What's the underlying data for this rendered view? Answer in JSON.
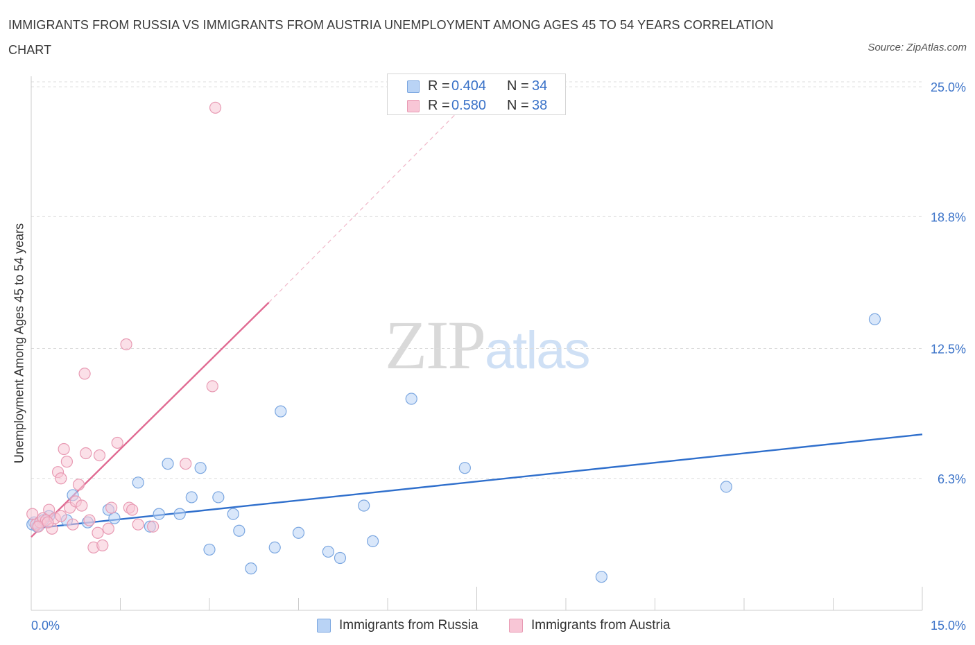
{
  "title": "IMMIGRANTS FROM RUSSIA VS IMMIGRANTS FROM AUSTRIA UNEMPLOYMENT AMONG AGES 45 TO 54 YEARS CORRELATION CHART",
  "source": "Source: ZipAtlas.com",
  "watermark": {
    "zip": "ZIP",
    "atlas": "atlas"
  },
  "colors": {
    "russia_fill": "#b9d3f5",
    "russia_stroke": "#7aa6e0",
    "russia_line": "#2f6fcc",
    "austria_fill": "#f8c6d6",
    "austria_stroke": "#e89ab3",
    "austria_line": "#e06a92",
    "tick_label": "#3a72c8",
    "grid": "#dcdcdc"
  },
  "legend": {
    "russia": {
      "r_label": "R =",
      "r_value": "0.404",
      "n_label": "N =",
      "n_value": "34"
    },
    "austria": {
      "r_label": "R =",
      "r_value": "0.580",
      "n_label": "N =",
      "n_value": "38"
    }
  },
  "chart_data": {
    "type": "scatter",
    "title": "IMMIGRANTS FROM RUSSIA VS IMMIGRANTS FROM AUSTRIA UNEMPLOYMENT AMONG AGES 45 TO 54 YEARS CORRELATION CHART",
    "xlabel": "",
    "ylabel": "Unemployment Among Ages 45 to 54 years",
    "xlim": [
      0,
      15
    ],
    "ylim": [
      0,
      25.5
    ],
    "x_tick_labels": [
      "0.0%",
      "15.0%"
    ],
    "y_ticks": [
      6.3,
      12.5,
      18.8,
      25.0
    ],
    "y_tick_labels": [
      "6.3%",
      "12.5%",
      "18.8%",
      "25.0%"
    ],
    "grid": true,
    "legend_position": "top-center",
    "series": [
      {
        "name": "Immigrants from Russia",
        "color": "#b9d3f5",
        "points": [
          [
            0.05,
            4.2
          ],
          [
            0.1,
            4.0
          ],
          [
            0.2,
            4.3
          ],
          [
            0.3,
            4.5
          ],
          [
            0.6,
            4.3
          ],
          [
            0.7,
            5.5
          ],
          [
            0.95,
            4.2
          ],
          [
            1.3,
            4.8
          ],
          [
            1.4,
            4.4
          ],
          [
            1.8,
            6.1
          ],
          [
            2.0,
            4.0
          ],
          [
            2.15,
            4.6
          ],
          [
            2.3,
            7.0
          ],
          [
            2.5,
            4.6
          ],
          [
            2.7,
            5.4
          ],
          [
            2.85,
            6.8
          ],
          [
            3.0,
            2.9
          ],
          [
            3.15,
            5.4
          ],
          [
            3.4,
            4.6
          ],
          [
            3.5,
            3.8
          ],
          [
            3.7,
            2.0
          ],
          [
            4.1,
            3.0
          ],
          [
            4.2,
            9.5
          ],
          [
            4.5,
            3.7
          ],
          [
            5.0,
            2.8
          ],
          [
            5.2,
            2.5
          ],
          [
            5.6,
            5.0
          ],
          [
            5.75,
            3.3
          ],
          [
            6.4,
            10.1
          ],
          [
            7.3,
            6.8
          ],
          [
            9.6,
            1.6
          ],
          [
            11.7,
            5.9
          ],
          [
            14.2,
            13.9
          ],
          [
            0.02,
            4.1
          ]
        ]
      },
      {
        "name": "Immigrants from Austria",
        "color": "#f8c6d6",
        "points": [
          [
            0.02,
            4.6
          ],
          [
            0.08,
            4.1
          ],
          [
            0.15,
            4.2
          ],
          [
            0.2,
            4.4
          ],
          [
            0.25,
            4.3
          ],
          [
            0.3,
            4.8
          ],
          [
            0.35,
            3.9
          ],
          [
            0.4,
            4.4
          ],
          [
            0.45,
            6.6
          ],
          [
            0.5,
            6.3
          ],
          [
            0.55,
            7.7
          ],
          [
            0.6,
            7.1
          ],
          [
            0.65,
            4.9
          ],
          [
            0.7,
            4.1
          ],
          [
            0.75,
            5.2
          ],
          [
            0.8,
            6.0
          ],
          [
            0.85,
            5.0
          ],
          [
            0.9,
            11.3
          ],
          [
            0.92,
            7.5
          ],
          [
            0.98,
            4.3
          ],
          [
            1.05,
            3.0
          ],
          [
            1.12,
            3.7
          ],
          [
            1.15,
            7.4
          ],
          [
            1.2,
            3.1
          ],
          [
            1.3,
            3.9
          ],
          [
            1.35,
            4.9
          ],
          [
            1.45,
            8.0
          ],
          [
            1.6,
            12.7
          ],
          [
            1.65,
            4.9
          ],
          [
            1.7,
            4.8
          ],
          [
            1.8,
            4.1
          ],
          [
            2.05,
            4.0
          ],
          [
            2.6,
            7.0
          ],
          [
            3.05,
            10.7
          ],
          [
            3.1,
            24.0
          ],
          [
            0.12,
            4.0
          ],
          [
            0.28,
            4.2
          ],
          [
            0.5,
            4.5
          ]
        ]
      }
    ],
    "trendlines": [
      {
        "series": "Immigrants from Russia",
        "from": [
          0,
          3.9
        ],
        "to": [
          15,
          8.4
        ],
        "style": "solid"
      },
      {
        "series": "Immigrants from Austria",
        "from": [
          0,
          3.5
        ],
        "to": [
          4.0,
          14.7
        ],
        "style": "solid"
      },
      {
        "series": "Immigrants from Austria",
        "from": [
          4.0,
          14.7
        ],
        "to": [
          7.6,
          25.0
        ],
        "style": "dashed"
      }
    ]
  },
  "bottom_legend": {
    "russia": "Immigrants from Russia",
    "austria": "Immigrants from Austria"
  }
}
